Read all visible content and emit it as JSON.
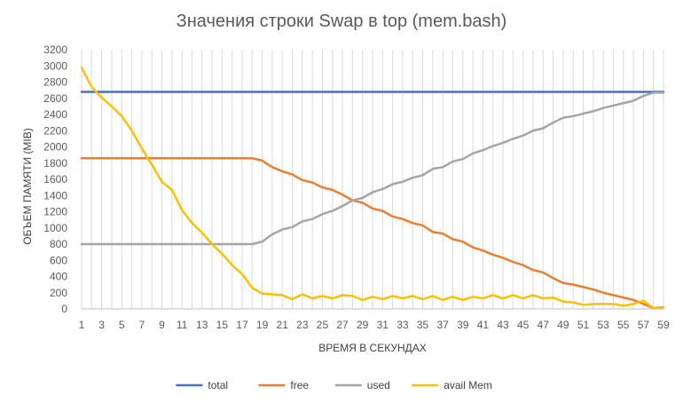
{
  "chart_data": {
    "type": "line",
    "title": "Значения строки Swap в top (mem.bash)",
    "xlabel": "ВРЕМЯ В СЕКУНДАХ",
    "ylabel": "ОБЪЕМ ПАМЯТИ (MIB)",
    "ylim": [
      0,
      3200
    ],
    "yticks": [
      0,
      200,
      400,
      600,
      800,
      1000,
      1200,
      1400,
      1600,
      1800,
      2000,
      2200,
      2400,
      2600,
      2800,
      3000,
      3200
    ],
    "xlim": [
      1,
      59
    ],
    "xticks": [
      1,
      3,
      5,
      7,
      9,
      11,
      13,
      15,
      17,
      19,
      21,
      23,
      25,
      27,
      29,
      31,
      33,
      35,
      37,
      39,
      41,
      43,
      45,
      47,
      49,
      51,
      53,
      55,
      57,
      59
    ],
    "grid": "vertical",
    "legend": "bottom",
    "series": [
      {
        "name": "total",
        "color": "#4472C4",
        "values": [
          2680,
          2680,
          2680,
          2680,
          2680,
          2680,
          2680,
          2680,
          2680,
          2680,
          2680,
          2680,
          2680,
          2680,
          2680,
          2680,
          2680,
          2680,
          2680,
          2680,
          2680,
          2680,
          2680,
          2680,
          2680,
          2680,
          2680,
          2680,
          2680,
          2680,
          2680,
          2680,
          2680,
          2680,
          2680,
          2680,
          2680,
          2680,
          2680,
          2680,
          2680,
          2680,
          2680,
          2680,
          2680,
          2680,
          2680,
          2680,
          2680,
          2680,
          2680,
          2680,
          2680,
          2680,
          2680,
          2680,
          2680,
          2680,
          2680
        ]
      },
      {
        "name": "free",
        "color": "#ED7D31",
        "values": [
          1860,
          1860,
          1860,
          1860,
          1860,
          1860,
          1860,
          1860,
          1860,
          1860,
          1860,
          1860,
          1860,
          1860,
          1860,
          1860,
          1860,
          1860,
          1830,
          1750,
          1700,
          1660,
          1590,
          1560,
          1500,
          1470,
          1410,
          1340,
          1310,
          1240,
          1210,
          1140,
          1110,
          1060,
          1030,
          950,
          930,
          860,
          830,
          760,
          720,
          670,
          630,
          580,
          540,
          480,
          450,
          380,
          320,
          300,
          270,
          240,
          200,
          170,
          140,
          110,
          60,
          10,
          20
        ]
      },
      {
        "name": "used",
        "color": "#A5A5A5",
        "values": [
          800,
          800,
          800,
          800,
          800,
          800,
          800,
          800,
          800,
          800,
          800,
          800,
          800,
          800,
          800,
          800,
          800,
          800,
          830,
          920,
          980,
          1010,
          1080,
          1110,
          1170,
          1210,
          1270,
          1340,
          1370,
          1440,
          1480,
          1540,
          1570,
          1620,
          1650,
          1730,
          1750,
          1820,
          1850,
          1920,
          1960,
          2010,
          2050,
          2100,
          2140,
          2200,
          2230,
          2300,
          2360,
          2380,
          2410,
          2440,
          2480,
          2510,
          2540,
          2570,
          2630,
          2670,
          2670
        ]
      },
      {
        "name": "avail Mem",
        "color": "#FFC000",
        "values": [
          2980,
          2740,
          2610,
          2500,
          2380,
          2200,
          1980,
          1780,
          1570,
          1470,
          1220,
          1060,
          940,
          800,
          680,
          540,
          430,
          260,
          190,
          180,
          170,
          120,
          180,
          130,
          160,
          130,
          170,
          160,
          110,
          150,
          120,
          160,
          130,
          160,
          120,
          160,
          110,
          150,
          110,
          150,
          130,
          170,
          130,
          170,
          130,
          170,
          130,
          140,
          90,
          80,
          50,
          60,
          60,
          60,
          40,
          60,
          100,
          10,
          20
        ]
      }
    ]
  }
}
